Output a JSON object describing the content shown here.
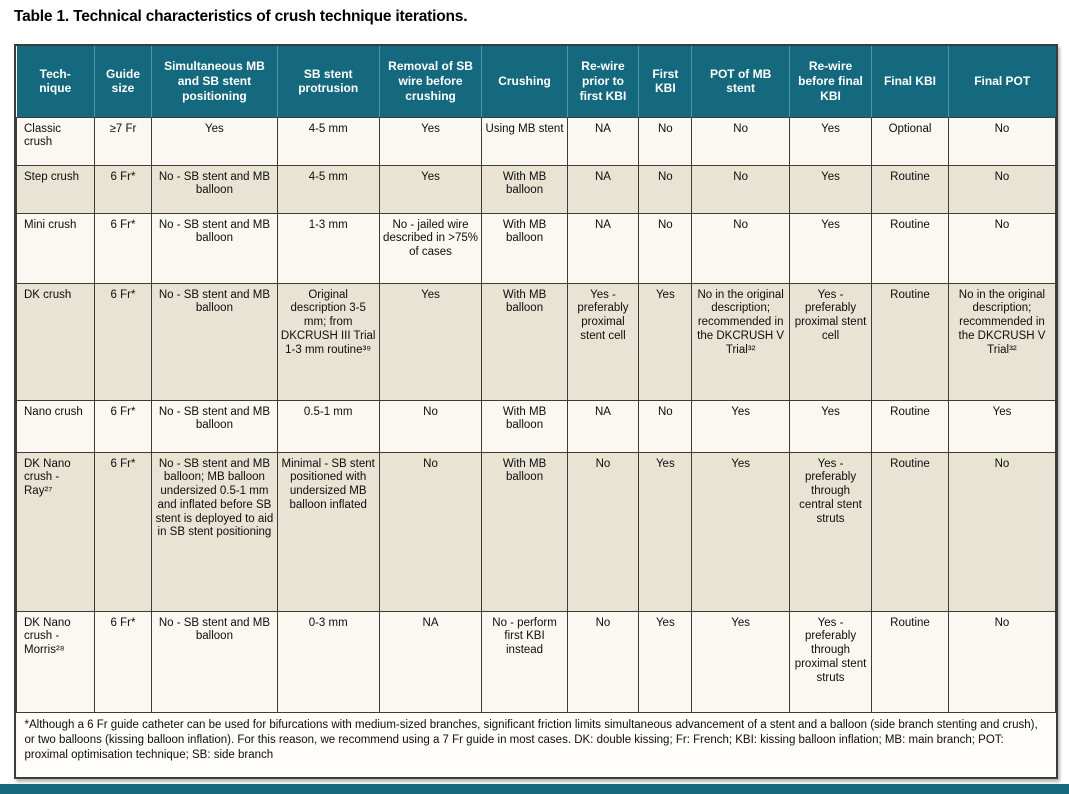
{
  "page": {
    "title": "Table 1. Technical characteristics of crush technique iterations."
  },
  "colors": {
    "header_bg": "#15697e",
    "header_divider": "#4d97a8",
    "row_cream": "#faf8f1",
    "row_beige": "#e9e3d3",
    "grid_line": "#3c3c3c",
    "bottom_accent_bar": "#15697e"
  },
  "table": {
    "columns": [
      "Tech-\nnique",
      "Guide size",
      "Simultaneous MB and SB stent positioning",
      "SB stent protrusion",
      "Removal of SB wire before crushing",
      "Crushing",
      "Re-wire prior to first KBI",
      "First KBI",
      "POT of MB stent",
      "Re-wire before final KBI",
      "Final KBI",
      "Final POT"
    ],
    "rows": [
      {
        "cells": [
          "Classic crush",
          "≥7 Fr",
          "Yes",
          "4-5 mm",
          "Yes",
          "Using MB stent",
          "NA",
          "No",
          "No",
          "Yes",
          "Optional",
          "No"
        ]
      },
      {
        "cells": [
          "Step crush",
          "6 Fr*",
          "No - SB stent and MB balloon",
          "4-5 mm",
          "Yes",
          "With MB balloon",
          "NA",
          "No",
          "No",
          "Yes",
          "Routine",
          "No"
        ]
      },
      {
        "cells": [
          "Mini crush",
          "6 Fr*",
          "No - SB stent and MB balloon",
          "1-3 mm",
          "No - jailed wire described in >75% of cases",
          "With MB balloon",
          "NA",
          "No",
          "No",
          "Yes",
          "Routine",
          "No"
        ]
      },
      {
        "cells": [
          "DK crush",
          "6 Fr*",
          "No - SB stent and MB balloon",
          "Original description 3-5 mm; from DKCRUSH III Trial 1-3 mm routine³⁹",
          "Yes",
          "With MB balloon",
          "Yes - preferably proximal stent cell",
          "Yes",
          "No in the original description; recommended in the DKCRUSH V Trial³²",
          "Yes - preferably proximal stent cell",
          "Routine",
          "No in the original description; recommended in the DKCRUSH V Trial³²"
        ]
      },
      {
        "cells": [
          "Nano crush",
          "6 Fr*",
          "No - SB stent and MB balloon",
          "0.5-1 mm",
          "No",
          "With MB balloon",
          "NA",
          "No",
          "Yes",
          "Yes",
          "Routine",
          "Yes"
        ]
      },
      {
        "cells": [
          "DK Nano crush - Ray²⁷",
          "6 Fr*",
          "No - SB stent and MB balloon; MB balloon undersized 0.5-1 mm and inflated before SB stent is deployed to aid in SB stent positioning",
          "Minimal - SB stent positioned with undersized MB balloon inflated",
          "No",
          "With MB balloon",
          "No",
          "Yes",
          "Yes",
          "Yes - preferably through central stent struts",
          "Routine",
          "No"
        ]
      },
      {
        "cells": [
          "DK Nano crush - Morris²⁸",
          "6 Fr*",
          "No - SB stent and MB balloon",
          "0-3 mm",
          "NA",
          "No - perform first KBI instead",
          "No",
          "Yes",
          "Yes",
          "Yes - preferably through proximal stent struts",
          "Routine",
          "No"
        ]
      }
    ]
  },
  "footnote": {
    "text": "*Although a 6 Fr guide catheter can be used for bifurcations with medium-sized branches, significant friction limits simultaneous advancement of a stent and a balloon (side branch stenting and crush), or two balloons (kissing balloon inflation). For this reason, we recommend using a 7 Fr guide in most cases. DK: double kissing; Fr: French; KBI: kissing balloon inflation; MB: main branch; POT: proximal optimisation technique; SB: side branch"
  }
}
